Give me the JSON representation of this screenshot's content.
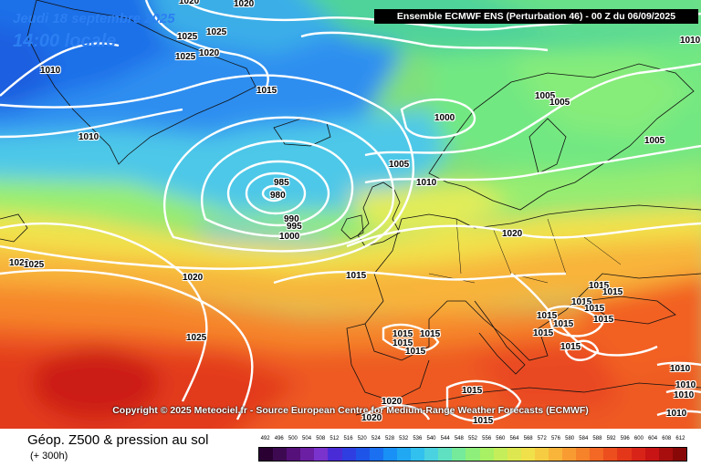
{
  "header": {
    "date_line": "Jeudi 18 septembre 2025",
    "time_line": "14:00 locale",
    "run_info": "Ensemble ECMWF ENS  (Perturbation 46)  - 00 Z du 06/09/2025"
  },
  "copyright": "Copyright © 2025 Meteociel.fr - Source European Centre for Medium-Range Weather Forecasts (ECMWF)",
  "parameter": {
    "title": "Géop. Z500 & pression au sol",
    "subtitle": "(+ 300h)"
  },
  "isobar_labels": [
    "1020",
    "1020",
    "1025",
    "1025",
    "1025",
    "1020",
    "1010",
    "1015",
    "1010",
    "1000",
    "1005",
    "1005",
    "1005",
    "1005",
    "1010",
    "985",
    "980",
    "990",
    "995",
    "1000",
    "1020",
    "1025",
    "1020",
    "1015",
    "1020",
    "1015",
    "1015",
    "1015",
    "1015",
    "1015",
    "1015",
    "1015",
    "1015",
    "1015",
    "1015",
    "1015",
    "1015",
    "1015",
    "1025",
    "1020",
    "1020",
    "1015",
    "1015",
    "1010",
    "1010",
    "1010",
    "1010",
    "1010"
  ],
  "legend": {
    "labels": [
      "492",
      "496",
      "500",
      "504",
      "508",
      "512",
      "516",
      "520",
      "524",
      "528",
      "532",
      "536",
      "540",
      "544",
      "548",
      "552",
      "556",
      "560",
      "564",
      "568",
      "572",
      "576",
      "580",
      "584",
      "588",
      "592",
      "596",
      "600",
      "604",
      "608",
      "612"
    ],
    "colors": [
      "#2a0033",
      "#3d0a52",
      "#55107a",
      "#6b1fa3",
      "#7a33cc",
      "#4a2cd6",
      "#2f3ee0",
      "#1e55e8",
      "#1a70f0",
      "#1890f5",
      "#20a8f2",
      "#32c0ee",
      "#4ad2e0",
      "#5fe0c0",
      "#75ea9a",
      "#8ef07a",
      "#a8f064",
      "#c4ee5a",
      "#dde850",
      "#f0e04a",
      "#f6cd42",
      "#f8b53a",
      "#f89c32",
      "#f6822a",
      "#f26824",
      "#ec4e1e",
      "#e4371a",
      "#d82418",
      "#c81414",
      "#a80e0e",
      "#880808"
    ],
    "unit_note": ""
  },
  "colors": {
    "run_box_bg": "#000000",
    "title_color": "#2c7ff2",
    "isobar": "#ffffff",
    "coast": "#000000"
  }
}
